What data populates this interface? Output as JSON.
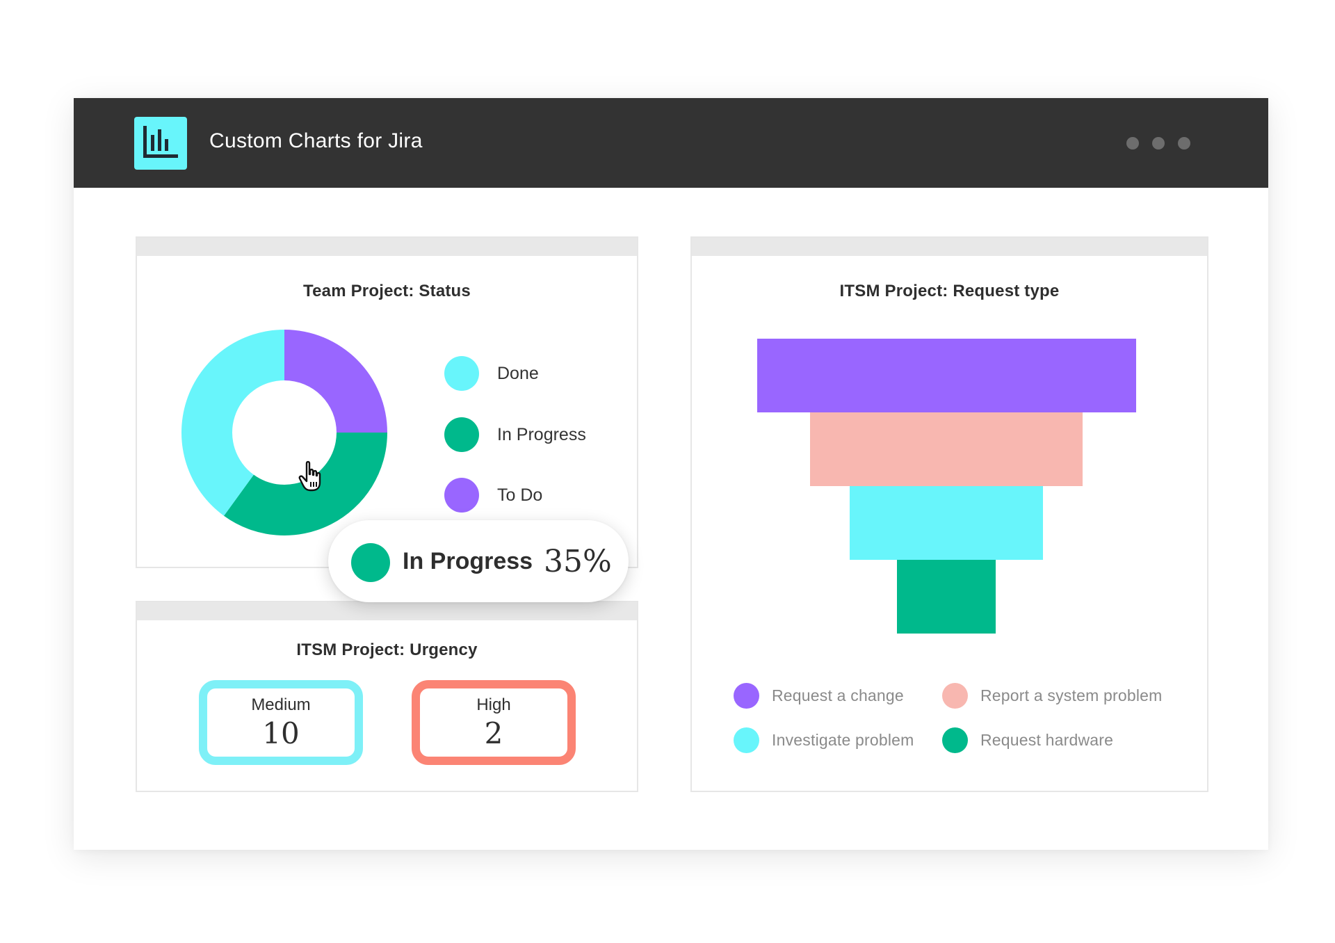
{
  "app": {
    "title": "Custom Charts for Jira",
    "icon": "bar-chart-icon",
    "brand_color": "#68f5fb",
    "titlebar_color": "#333333"
  },
  "window_controls": [
    "dot-icon",
    "dot-icon",
    "dot-icon"
  ],
  "colors": {
    "cyan": "#68f5fb",
    "green": "#00b98c",
    "purple": "#9966ff",
    "salmon": "#f8b7b0",
    "coral": "#fb8474"
  },
  "status_card": {
    "title": "Team Project: Status",
    "legend": [
      {
        "label": "Done",
        "color": "#68f5fb"
      },
      {
        "label": "In Progress",
        "color": "#00b98c"
      },
      {
        "label": "To Do",
        "color": "#9966ff"
      }
    ]
  },
  "tooltip": {
    "label": "In Progress",
    "value": "35%",
    "color": "#00b98c"
  },
  "urgency_card": {
    "title": "ITSM Project: Urgency",
    "items": [
      {
        "label": "Medium",
        "value": "10",
        "color": "#7ef0f7"
      },
      {
        "label": "High",
        "value": "2",
        "color": "#fb8474"
      }
    ]
  },
  "request_card": {
    "title": "ITSM Project: Request type",
    "legend": [
      {
        "label": "Request a change",
        "color": "#9966ff"
      },
      {
        "label": "Report a system problem",
        "color": "#f8b7b0"
      },
      {
        "label": "Investigate problem",
        "color": "#68f5fb"
      },
      {
        "label": "Request hardware",
        "color": "#00b98c"
      }
    ]
  },
  "chart_data": [
    {
      "type": "pie",
      "variant": "donut",
      "title": "Team Project: Status",
      "categories": [
        "To Do",
        "In Progress",
        "Done"
      ],
      "values": [
        25,
        35,
        40
      ],
      "colors": [
        "#9966ff",
        "#00b98c",
        "#68f5fb"
      ]
    },
    {
      "type": "bar",
      "variant": "funnel",
      "title": "ITSM Project: Request type",
      "categories": [
        "Request a change",
        "Report a system problem",
        "Investigate problem",
        "Request hardware"
      ],
      "values": [
        100,
        72,
        51,
        26
      ],
      "colors": [
        "#9966ff",
        "#f8b7b0",
        "#68f5fb",
        "#00b98c"
      ]
    }
  ]
}
